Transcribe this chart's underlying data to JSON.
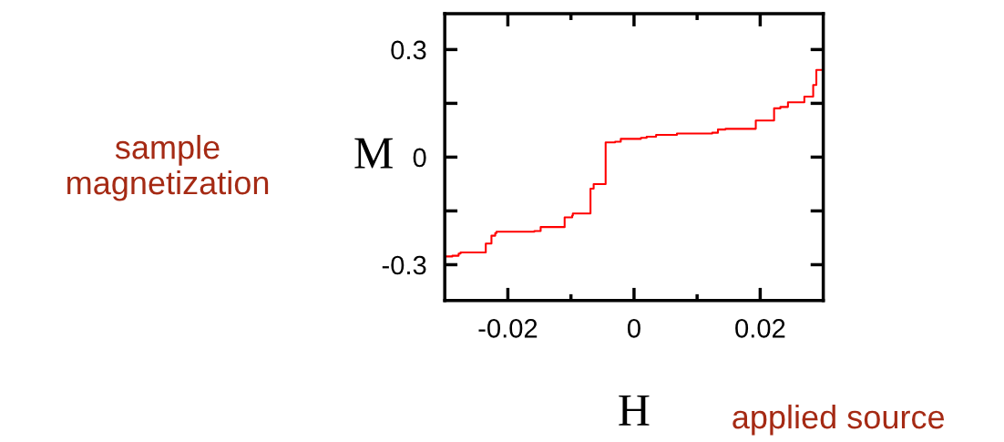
{
  "chart_data": {
    "type": "step",
    "xlabel": "H",
    "ylabel": "M",
    "annotations": [
      "sample\nmagnetization",
      "applied source"
    ],
    "x": [
      -0.0298,
      -0.0288,
      -0.0278,
      -0.0275,
      -0.0235,
      -0.0226,
      -0.022,
      -0.0218,
      -0.0158,
      -0.0148,
      -0.011,
      -0.0098,
      -0.0097,
      -0.0069,
      -0.0064,
      -0.0045,
      -0.003,
      -0.0021,
      0.0011,
      0.002,
      0.0035,
      0.0068,
      0.0124,
      0.0133,
      0.0145,
      0.0193,
      0.0222,
      0.0232,
      0.0244,
      0.027,
      0.0284,
      0.0289,
      0.0297
    ],
    "series": [
      {
        "color": "#ff0000",
        "values": [
          -0.277,
          -0.275,
          -0.269,
          -0.266,
          -0.241,
          -0.219,
          -0.212,
          -0.208,
          -0.206,
          -0.195,
          -0.168,
          -0.163,
          -0.157,
          -0.088,
          -0.075,
          0.041,
          0.043,
          0.051,
          0.054,
          0.057,
          0.062,
          0.066,
          0.068,
          0.077,
          0.079,
          0.102,
          0.136,
          0.14,
          0.153,
          0.169,
          0.201,
          0.243,
          0.243
        ]
      }
    ],
    "xlim": [
      -0.03,
      0.03
    ],
    "ylim": [
      -0.4,
      0.4
    ],
    "xticks": [
      -0.02,
      {
        "value": -0.01,
        "label": null
      },
      0,
      {
        "value": 0.01,
        "label": null
      },
      0.02
    ],
    "yticks": [
      -0.3,
      {
        "value": -0.15,
        "label": null
      },
      0,
      {
        "value": 0.15,
        "label": null
      },
      0.3
    ],
    "grid": false,
    "legend": false
  }
}
